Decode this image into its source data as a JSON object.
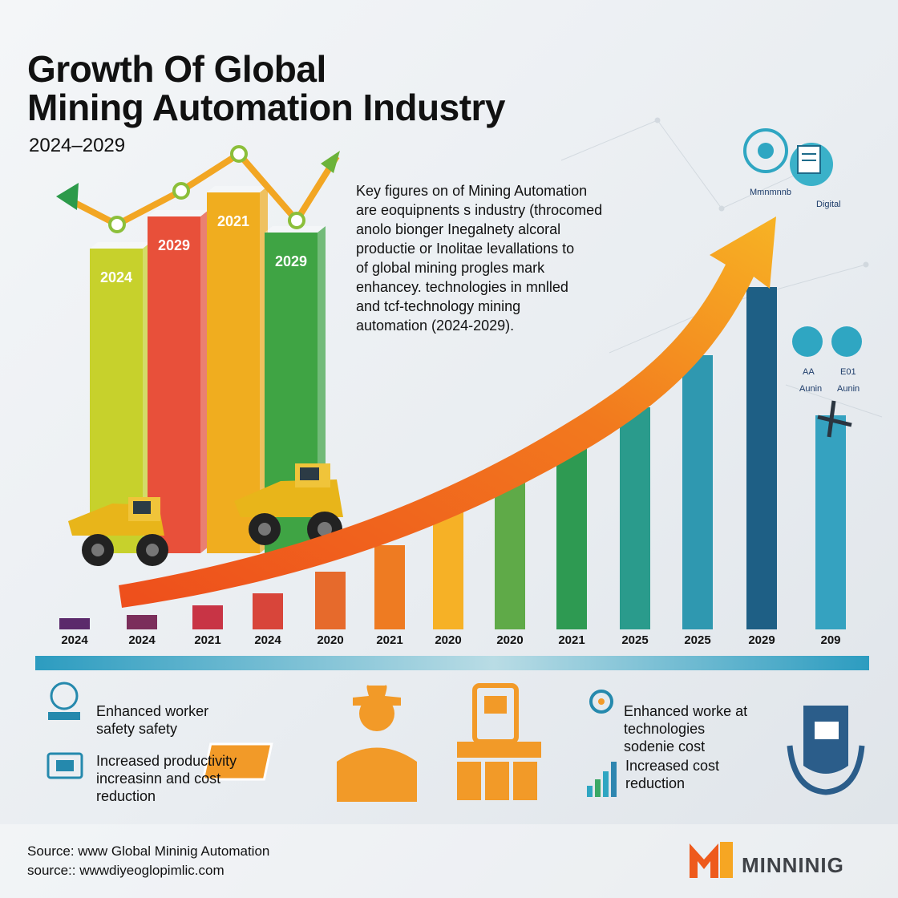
{
  "title_line1": "Growth Of Global",
  "title_line2": "Mining Automation Industry",
  "subtitle": "2024–2029",
  "description": [
    "Key figures on of Mining Automation",
    "are eoquipnents s industry (throcomed",
    "anolo bionger Inegalnety alcoral",
    "productie or Inolitae levallations to",
    "of global mining progles mark",
    "enhancey. technologies in mnlled",
    "and tcf-technology mining",
    "automation (2024-2029)."
  ],
  "icons_right": {
    "top_left_label": "Mmnmnnb",
    "top_right_label": "Digital",
    "mid_left_labels": [
      "AA",
      "Aunin"
    ],
    "mid_right_labels": [
      "E01",
      "Aunin"
    ]
  },
  "features_left": [
    {
      "lines": [
        "Enhanced worker",
        "safety safety"
      ],
      "icon": "worker-safety-icon"
    },
    {
      "lines": [
        "Increased productivity",
        "increasinn and cost",
        "reduction"
      ],
      "icon": "productivity-monitor-icon"
    }
  ],
  "features_right": [
    {
      "lines": [
        "Enhanced worke at",
        "technologies",
        "sodenie cost"
      ],
      "icon": "gear-network-icon"
    },
    {
      "lines": [
        "Increased cost",
        "reduction"
      ],
      "icon": "bar-growth-icon"
    }
  ],
  "footer": {
    "line1": "Source: www Global Mininig Automation",
    "line2": "source:: wwwdiyeoglopimlic.com"
  },
  "brand": "MINNINIG",
  "colors": {
    "accent_orange": "#f07a1c",
    "accent_teal": "#2fa6c2",
    "band": "#2e9ec0"
  },
  "chart_data": [
    {
      "type": "bar",
      "categories": [
        "2024",
        "2029",
        "2021",
        "2029"
      ],
      "values": [
        380,
        420,
        450,
        400
      ],
      "colors": [
        "#c7d12c",
        "#e8503a",
        "#f0ad1f",
        "#3fa444"
      ],
      "trend_line": true
    },
    {
      "type": "bar",
      "categories": [
        "2024",
        "2024",
        "2021",
        "2024",
        "2020",
        "2021",
        "2020",
        "2020",
        "2021",
        "2025",
        "2025",
        "2029",
        "209"
      ],
      "values": [
        14,
        18,
        30,
        45,
        72,
        105,
        150,
        190,
        235,
        277,
        342,
        427,
        267
      ],
      "colors": [
        "#5b2a6b",
        "#7b2e5b",
        "#c83445",
        "#d8453a",
        "#e66a2c",
        "#ee7b22",
        "#f6b126",
        "#5faa48",
        "#2e9a52",
        "#2a9b8c",
        "#2f98b0",
        "#1e5f85",
        "#35a2c0"
      ],
      "trend_arrow": true
    }
  ]
}
